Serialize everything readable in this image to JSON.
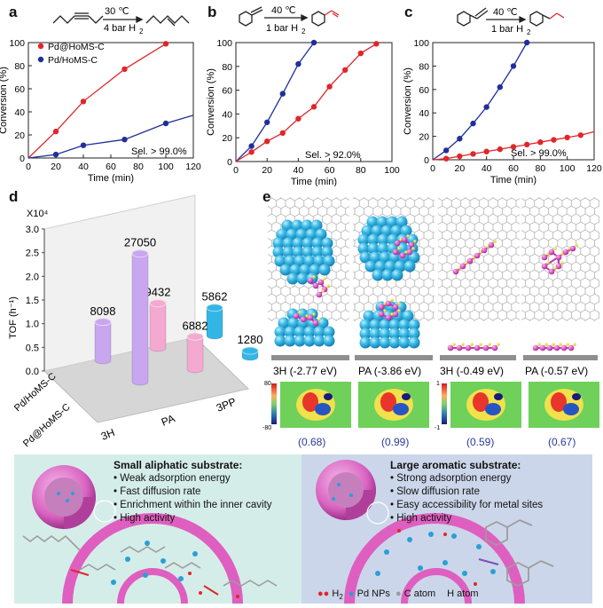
{
  "panels": {
    "a": {
      "label": "a",
      "condition_top": "30 ℃",
      "condition_bottom": "4 bar H",
      "condition_sub": "2",
      "selectivity": "Sel. > 99.0%",
      "legend": [
        "Pd@HoMS-C",
        "Pd/HoMS-C"
      ]
    },
    "b": {
      "label": "b",
      "condition_top": "40 ℃",
      "condition_bottom": "1 bar H",
      "condition_sub": "2",
      "selectivity": "Sel. > 92.0%"
    },
    "c": {
      "label": "c",
      "condition_top": "40 ℃",
      "condition_bottom": "1 bar H",
      "condition_sub": "2",
      "selectivity": "Sel. > 99.0%"
    },
    "d": {
      "label": "d"
    },
    "e": {
      "label": "e",
      "energies": [
        "3H (-2.77 eV)",
        "PA (-3.86 eV)",
        "3H (-0.49 eV)",
        "PA (-0.57 eV)"
      ],
      "charges": [
        "(0.68)",
        "(0.99)",
        "(0.59)",
        "(0.67)"
      ],
      "scale_left": [
        "80",
        "-80"
      ],
      "scale_right": [
        "1",
        "-1"
      ]
    },
    "f": {
      "label": "f",
      "left_title": "Small aliphatic substrate:",
      "left_bullets": [
        "Weak adsorption energy",
        "Fast diffusion rate",
        "Enrichment within the inner cavity",
        "High activity"
      ],
      "right_title": "Large aromatic substrate:",
      "right_bullets": [
        "Strong adsorption energy",
        "Slow diffusion rate",
        "Easy accessibility for metal sites",
        "High activity"
      ],
      "legend": [
        "H",
        "Pd NPs",
        "C atom",
        "H atom"
      ],
      "legend_h2_sub": "2"
    }
  },
  "colors": {
    "red": "#e0262b",
    "blue": "#1f2f9a",
    "purple": "#c9a6f0",
    "pink": "#f4a9d0",
    "cyan": "#33b6e6"
  },
  "chart_data": [
    {
      "type": "line",
      "title": "a",
      "xlabel": "Time (min)",
      "ylabel": "Conversion (%)",
      "xlim": [
        0,
        120
      ],
      "ylim": [
        0,
        100
      ],
      "xticks": [
        "0",
        "20",
        "40",
        "60",
        "80",
        "100",
        "120"
      ],
      "yticks": [
        "0",
        "20",
        "40",
        "60",
        "80",
        "100"
      ],
      "series": [
        {
          "name": "Pd@HoMS-C",
          "color": "#e0262b",
          "x": [
            20,
            40,
            70,
            100
          ],
          "y": [
            23,
            49,
            77,
            99
          ]
        },
        {
          "name": "Pd/HoMS-C",
          "color": "#1f2f9a",
          "x": [
            20,
            40,
            70,
            100
          ],
          "y": [
            3,
            11,
            16,
            30
          ]
        }
      ]
    },
    {
      "type": "line",
      "title": "b",
      "xlabel": "Time (min)",
      "ylabel": "Conversion (%)",
      "xlim": [
        0,
        100
      ],
      "ylim": [
        0,
        100
      ],
      "xticks": [
        "0",
        "20",
        "40",
        "60",
        "80",
        "100"
      ],
      "yticks": [
        "0",
        "20",
        "40",
        "60",
        "80",
        "100"
      ],
      "series": [
        {
          "name": "Pd/HoMS-C",
          "color": "#1f2f9a",
          "x": [
            10,
            20,
            30,
            40,
            50
          ],
          "y": [
            13,
            33,
            57,
            82,
            100
          ]
        },
        {
          "name": "Pd@HoMS-C",
          "color": "#e0262b",
          "x": [
            10,
            20,
            30,
            40,
            50,
            60,
            70,
            80,
            90
          ],
          "y": [
            8,
            17,
            24,
            36,
            46,
            63,
            77,
            91,
            99
          ]
        }
      ]
    },
    {
      "type": "line",
      "title": "c",
      "xlabel": "Time (min)",
      "ylabel": "Conversion (%)",
      "xlim": [
        0,
        120
      ],
      "ylim": [
        0,
        100
      ],
      "xticks": [
        "0",
        "20",
        "40",
        "60",
        "80",
        "100",
        "120"
      ],
      "yticks": [
        "0",
        "20",
        "40",
        "60",
        "80",
        "100"
      ],
      "series": [
        {
          "name": "Pd/HoMS-C",
          "color": "#1f2f9a",
          "x": [
            10,
            20,
            30,
            40,
            50,
            60,
            70
          ],
          "y": [
            8,
            18,
            31,
            45,
            62,
            80,
            100
          ]
        },
        {
          "name": "Pd@HoMS-C",
          "color": "#e0262b",
          "x": [
            10,
            20,
            30,
            40,
            50,
            60,
            70,
            80,
            90,
            100,
            110
          ],
          "y": [
            1,
            3,
            5,
            7,
            9,
            11,
            13,
            15,
            17,
            19,
            21
          ]
        }
      ]
    },
    {
      "type": "bar",
      "title": "d",
      "ylabel": "TOF (h⁻¹)",
      "yscale_label": "X10⁴",
      "ylim": [
        0,
        3.0
      ],
      "yticks": [
        "0.0",
        "0.5",
        "1.0",
        "1.5",
        "2.0",
        "2.5",
        "3.0"
      ],
      "categories": [
        "3H",
        "PA",
        "3PP"
      ],
      "series": [
        {
          "name": "Pd@HoMS-C",
          "values": [
            27050,
            6882,
            1280
          ],
          "colors": [
            "#c9a6f0",
            "#f4a9d0",
            "#33b6e6"
          ]
        },
        {
          "name": "Pd/HoMS-C",
          "values": [
            8098,
            9432,
            5862
          ],
          "colors": [
            "#c9a6f0",
            "#f4a9d0",
            "#33b6e6"
          ]
        }
      ],
      "row_labels": [
        "Pd/HoMS-C",
        "Pd@HoMS-C"
      ]
    }
  ]
}
